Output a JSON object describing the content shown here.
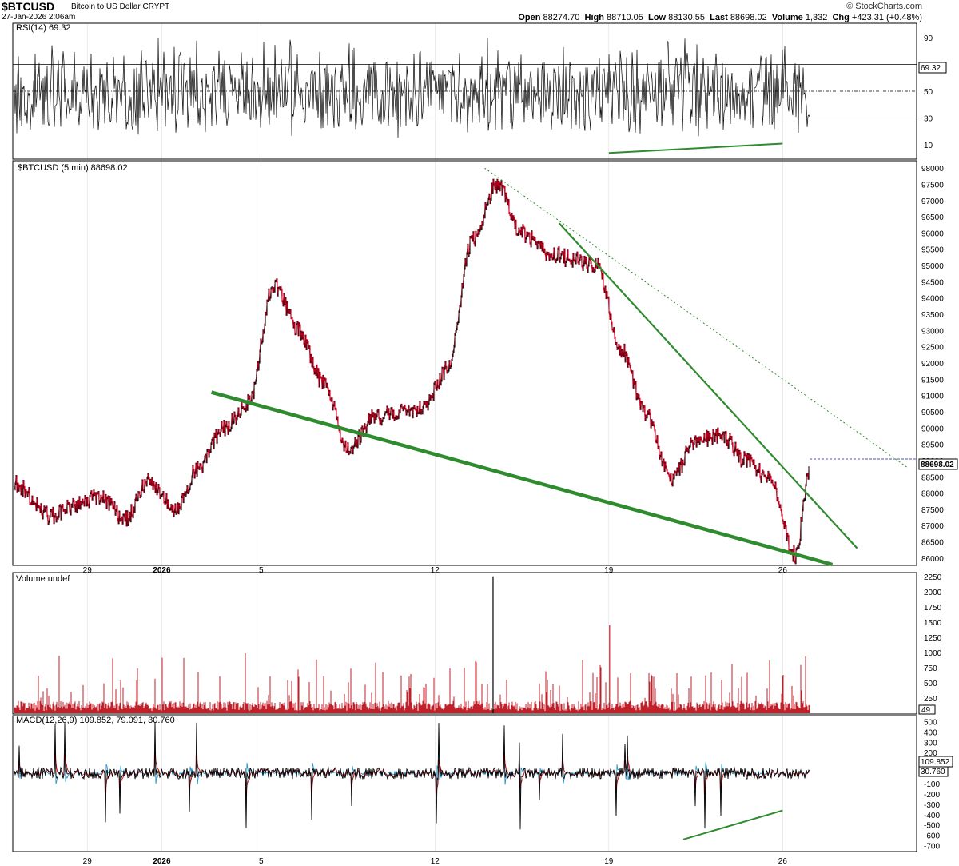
{
  "header": {
    "symbol": "$BTCUSD",
    "description": "Bitcoin to US Dollar",
    "exchange": "CRYPT",
    "datetime": "27-Jan-2026 2:06am",
    "open_label": "Open",
    "open": "88274.70",
    "high_label": "High",
    "high": "88710.05",
    "low_label": "Low",
    "low": "88130.55",
    "last_label": "Last",
    "last": "88698.02",
    "volume_label": "Volume",
    "volume": "1,332",
    "chg_label": "Chg",
    "chg": "+423.31 (+0.48%)",
    "brand": "© StockCharts.com"
  },
  "panels": {
    "rsi": {
      "label": "RSI(14) 69.32",
      "last_badge": "69.32"
    },
    "price": {
      "label": "$BTCUSD (5 min) 88698.02",
      "last_badge": "88698.02"
    },
    "volume": {
      "label": "Volume undef",
      "last_badge": "49"
    },
    "macd": {
      "label": "MACD(12,26,9) 109.852, 79.091, 30.760",
      "badge1": "109.852",
      "badge2": "30.760"
    }
  },
  "chart_data": [
    {
      "type": "line",
      "panel": "rsi",
      "series": [
        {
          "name": "RSI(14)",
          "last": 69.32
        }
      ],
      "ylim": [
        0,
        100
      ],
      "yticks": [
        10,
        30,
        50,
        90
      ],
      "reference_lines": [
        30,
        50,
        70
      ],
      "annotations": [
        {
          "type": "trendline",
          "color": "#2e8b2e",
          "from": {
            "x": "2026-01-19",
            "y": 4
          },
          "to": {
            "x": "2026-01-26",
            "y": 11
          }
        }
      ]
    },
    {
      "type": "line",
      "panel": "price",
      "title": "$BTCUSD (5 min)",
      "x": [
        "2025-12-26",
        "2025-12-27",
        "2025-12-28",
        "2025-12-29",
        "2025-12-30",
        "2025-12-31",
        "2026-01-01",
        "2026-01-02",
        "2026-01-03",
        "2026-01-04",
        "2026-01-05",
        "2026-01-06",
        "2026-01-07",
        "2026-01-08",
        "2026-01-09",
        "2026-01-10",
        "2026-01-11",
        "2026-01-12",
        "2026-01-13",
        "2026-01-14",
        "2026-01-15",
        "2026-01-16",
        "2026-01-17",
        "2026-01-18",
        "2026-01-19",
        "2026-01-20",
        "2026-01-21",
        "2026-01-22",
        "2026-01-23",
        "2026-01-24",
        "2026-01-25",
        "2026-01-26",
        "2026-01-27"
      ],
      "y": [
        88300,
        87300,
        87600,
        87900,
        87200,
        88400,
        87500,
        88800,
        90000,
        90800,
        94400,
        93000,
        91400,
        89300,
        90300,
        90500,
        90600,
        91800,
        95800,
        97500,
        96000,
        95400,
        95200,
        95000,
        92400,
        90400,
        88400,
        89600,
        89800,
        89000,
        88400,
        86100,
        88700
      ],
      "xticks": [
        "29",
        "2026",
        "5",
        "12",
        "19",
        "26"
      ],
      "ylim": [
        85800,
        98200
      ],
      "yticks": [
        86000,
        86500,
        87000,
        87500,
        88000,
        88500,
        89000,
        89500,
        90000,
        90500,
        91000,
        91500,
        92000,
        92500,
        93000,
        93500,
        94000,
        94500,
        95000,
        95500,
        96000,
        96500,
        97000,
        97500,
        98000
      ],
      "last": 88698.02,
      "colors": {
        "up": "#000000",
        "down": "#cc0022"
      },
      "annotations": [
        {
          "type": "trendline",
          "color": "#2e8b2e",
          "width": "thick",
          "from": {
            "x": "2026-01-03",
            "y": 91100
          },
          "to": {
            "x": "2026-01-28",
            "y": 85800
          }
        },
        {
          "type": "trendline",
          "color": "#2e8b2e",
          "from": {
            "x": "2026-01-17",
            "y": 96300
          },
          "to": {
            "x": "2026-01-29",
            "y": 86300
          }
        },
        {
          "type": "trendline",
          "color": "#2e8b2e",
          "style": "dotted",
          "from": {
            "x": "2026-01-14",
            "y": 98000
          },
          "to": {
            "x": "2026-01-31",
            "y": 88800
          }
        }
      ]
    },
    {
      "type": "bar",
      "panel": "volume",
      "title": "Volume undef",
      "ylim": [
        0,
        2300
      ],
      "yticks": [
        250,
        500,
        750,
        1000,
        1250,
        1500,
        1750,
        2000,
        2250
      ],
      "last": 49,
      "spikes": [
        {
          "x": "2026-01-14",
          "y": 2250
        },
        {
          "x": "2026-01-19",
          "y": 1450
        }
      ],
      "color": "#c0202a"
    },
    {
      "type": "line",
      "panel": "macd",
      "title": "MACD(12,26,9)",
      "series": [
        {
          "name": "MACD",
          "last": 109.852,
          "color": "#000000"
        },
        {
          "name": "Signal",
          "last": 79.091,
          "color": "#cc0000"
        },
        {
          "name": "Histogram",
          "last": 30.76,
          "color": "#1e90c8"
        }
      ],
      "ylim": [
        -750,
        550
      ],
      "yticks": [
        -700,
        -600,
        -500,
        -400,
        -300,
        -200,
        -100,
        0,
        100,
        200,
        300,
        400,
        500
      ],
      "annotations": [
        {
          "type": "trendline",
          "color": "#2e8b2e",
          "from": {
            "x": "2026-01-22",
            "y": -640
          },
          "to": {
            "x": "2026-01-26",
            "y": -360
          }
        }
      ]
    }
  ]
}
